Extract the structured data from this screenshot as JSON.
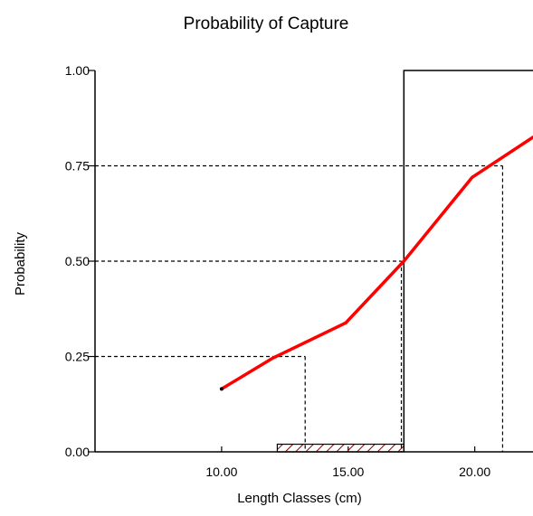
{
  "chart_data": {
    "type": "line",
    "title": "Probability of Capture",
    "xlabel": "Length Classes (cm)",
    "ylabel": "Probability",
    "xlim": [
      5.0,
      22.3
    ],
    "ylim": [
      0.0,
      1.0
    ],
    "x_ticks": [
      10.0,
      15.0,
      20.0
    ],
    "x_tick_labels": [
      "10.00",
      "15.00",
      "20.00"
    ],
    "y_ticks": [
      0.0,
      0.25,
      0.5,
      0.75,
      1.0
    ],
    "y_tick_labels": [
      "0.00",
      "0.25",
      "0.50",
      "0.75",
      "1.00"
    ],
    "grid": false,
    "legend": "none",
    "colors": {
      "curve": "#ff0000",
      "axes": "#000000",
      "guides": "#000000",
      "range_bar_hatch": "#8b0000"
    },
    "series": [
      {
        "x": [
          10.0,
          12.0,
          14.9,
          17.2,
          19.9,
          22.3
        ],
        "y": [
          0.165,
          0.245,
          0.338,
          0.5,
          0.72,
          0.825
        ]
      }
    ],
    "step_line": {
      "x": [
        17.2,
        17.2,
        22.3
      ],
      "y": [
        0.0,
        1.0,
        1.0
      ]
    },
    "reference_lines": [
      {
        "probability": 0.25,
        "length": 13.3
      },
      {
        "probability": 0.5,
        "length": 17.1
      },
      {
        "probability": 0.75,
        "length": 21.1
      }
    ],
    "range_bar": {
      "start": 12.2,
      "end": 17.2,
      "low": 0.0,
      "high": 0.02
    }
  }
}
